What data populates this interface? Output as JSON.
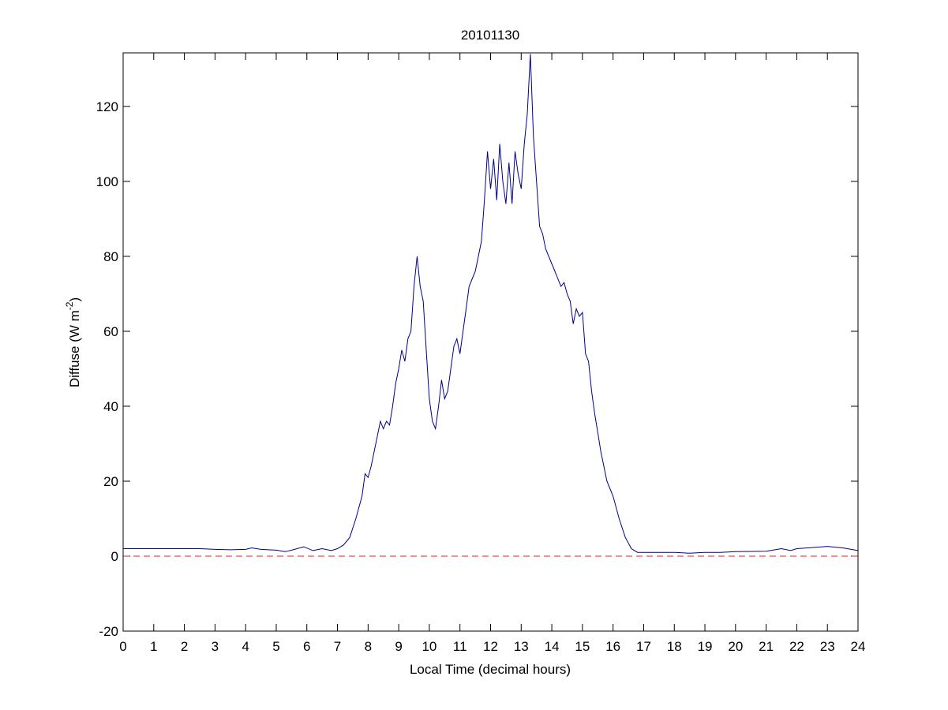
{
  "chart_data": {
    "type": "line",
    "title": "20101130",
    "xlabel": "Local Time (decimal hours)",
    "ylabel": {
      "text": "Diffuse (W m",
      "sup": "-2",
      "end": ")"
    },
    "x": [
      0,
      0.5,
      1,
      1.5,
      2,
      2.5,
      3,
      3.5,
      4,
      4.2,
      4.5,
      5,
      5.3,
      5.6,
      5.9,
      6.2,
      6.5,
      6.8,
      7,
      7.2,
      7.4,
      7.6,
      7.8,
      7.9,
      8.0,
      8.1,
      8.2,
      8.3,
      8.4,
      8.5,
      8.6,
      8.7,
      8.8,
      8.9,
      9.0,
      9.1,
      9.2,
      9.3,
      9.4,
      9.5,
      9.6,
      9.7,
      9.8,
      9.9,
      10.0,
      10.1,
      10.2,
      10.3,
      10.4,
      10.5,
      10.6,
      10.7,
      10.8,
      10.9,
      11.0,
      11.1,
      11.2,
      11.3,
      11.4,
      11.5,
      11.6,
      11.7,
      11.8,
      11.9,
      12.0,
      12.1,
      12.2,
      12.3,
      12.4,
      12.5,
      12.6,
      12.7,
      12.8,
      12.9,
      13.0,
      13.1,
      13.2,
      13.3,
      13.4,
      13.5,
      13.6,
      13.7,
      13.8,
      13.9,
      14.0,
      14.1,
      14.2,
      14.3,
      14.4,
      14.5,
      14.6,
      14.7,
      14.8,
      14.9,
      15.0,
      15.1,
      15.2,
      15.3,
      15.4,
      15.5,
      15.6,
      15.7,
      15.8,
      15.9,
      16.0,
      16.2,
      16.4,
      16.6,
      16.8,
      17,
      17.5,
      18,
      18.5,
      19,
      19.5,
      20,
      21,
      21.5,
      21.8,
      22,
      22.5,
      23,
      23.5,
      24
    ],
    "series": [
      {
        "color": "#00008b",
        "values": [
          2,
          2,
          2,
          2,
          2,
          2,
          1.8,
          1.7,
          1.8,
          2.2,
          1.8,
          1.6,
          1.2,
          1.8,
          2.5,
          1.5,
          2,
          1.5,
          2,
          3,
          5,
          10,
          16,
          22,
          21,
          24,
          28,
          32,
          36,
          34,
          36,
          35,
          40,
          46,
          50,
          55,
          52,
          58,
          60,
          72,
          80,
          72,
          68,
          55,
          42,
          36,
          34,
          40,
          47,
          42,
          44,
          50,
          56,
          58,
          54,
          60,
          66,
          72,
          74,
          76,
          80,
          84,
          95,
          108,
          98,
          106,
          95,
          110,
          100,
          94,
          105,
          94,
          108,
          102,
          98,
          110,
          118,
          134,
          112,
          100,
          88,
          86,
          82,
          80,
          78,
          76,
          74,
          72,
          73,
          70,
          68,
          62,
          66,
          64,
          65,
          54,
          52,
          44,
          38,
          33,
          28,
          24,
          20,
          18,
          16,
          10,
          5,
          2,
          1,
          1,
          1,
          1,
          0.8,
          1,
          1,
          1.2,
          1.3,
          2,
          1.5,
          2,
          2.3,
          2.6,
          2.2,
          1.5
        ]
      }
    ],
    "reference_line": {
      "value": 0,
      "color": "#d62728",
      "dashed": true
    },
    "xlim": [
      0,
      24
    ],
    "xticks": [
      0,
      1,
      2,
      3,
      4,
      5,
      6,
      7,
      8,
      9,
      10,
      11,
      12,
      13,
      14,
      15,
      16,
      17,
      18,
      19,
      20,
      21,
      22,
      23,
      24
    ],
    "ylim": [
      -20,
      134.3
    ],
    "yticks": [
      -20,
      0,
      20,
      40,
      60,
      80,
      100,
      120
    ]
  }
}
